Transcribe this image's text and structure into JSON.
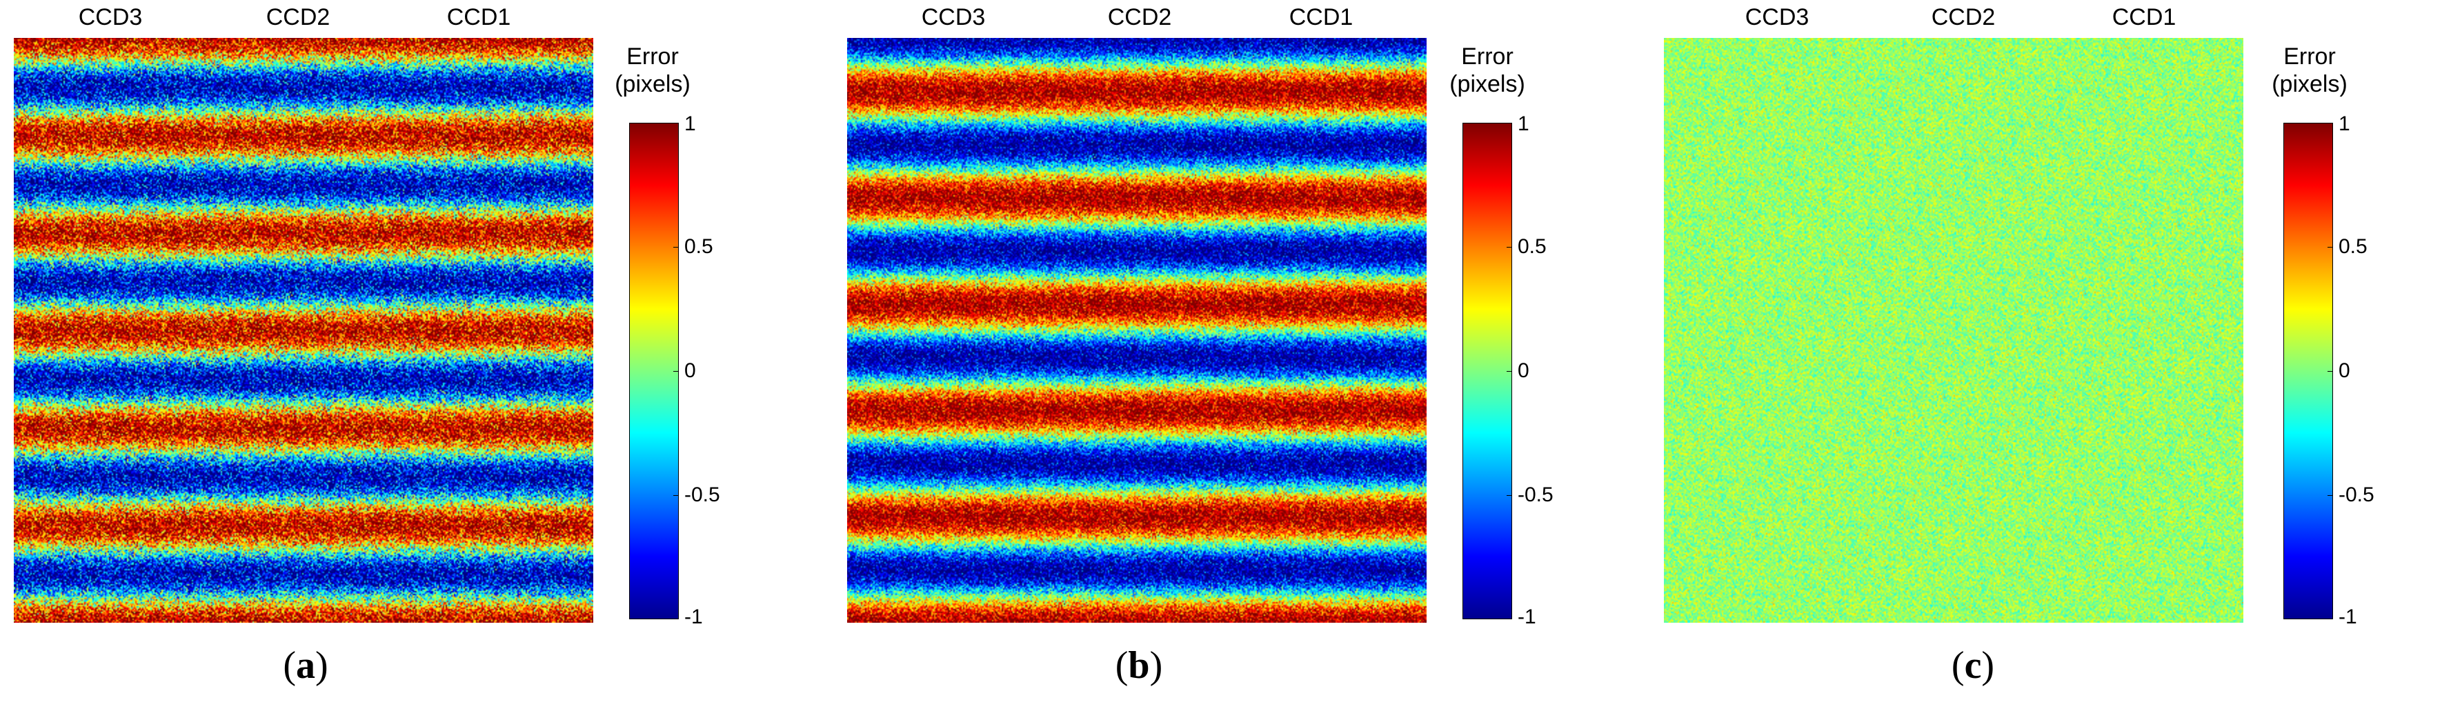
{
  "chart_data": [
    {
      "type": "heatmap",
      "panel_label": "a",
      "column_labels": [
        "CCD3",
        "CCD2",
        "CCD1"
      ],
      "colorbar": {
        "title_line1": "Error",
        "title_line2": "(pixels)",
        "ticks": [
          "1",
          "0.5",
          "0",
          "-0.5",
          "-1"
        ],
        "range": [
          -1,
          1
        ],
        "colormap": "jet"
      },
      "stripes": {
        "count": 6,
        "amplitude": 0.9,
        "noise": 0.55,
        "phase": 0.0
      }
    },
    {
      "type": "heatmap",
      "panel_label": "b",
      "column_labels": [
        "CCD3",
        "CCD2",
        "CCD1"
      ],
      "colorbar": {
        "title_line1": "Error",
        "title_line2": "(pixels)",
        "ticks": [
          "1",
          "0.5",
          "0",
          "-0.5",
          "-1"
        ],
        "range": [
          -1,
          1
        ],
        "colormap": "jet"
      },
      "stripes": {
        "count": 5.5,
        "amplitude": 0.95,
        "noise": 0.4,
        "phase": 0.5
      }
    },
    {
      "type": "heatmap",
      "panel_label": "c",
      "column_labels": [
        "CCD3",
        "CCD2",
        "CCD1"
      ],
      "colorbar": {
        "title_line1": "Error",
        "title_line2": "(pixels)",
        "ticks": [
          "1",
          "0.5",
          "0",
          "-0.5",
          "-1"
        ],
        "range": [
          -1,
          1
        ],
        "colormap": "jet"
      },
      "stripes": {
        "count": 0,
        "amplitude": 0.0,
        "noise": 0.22,
        "phase": 0.0
      }
    }
  ]
}
